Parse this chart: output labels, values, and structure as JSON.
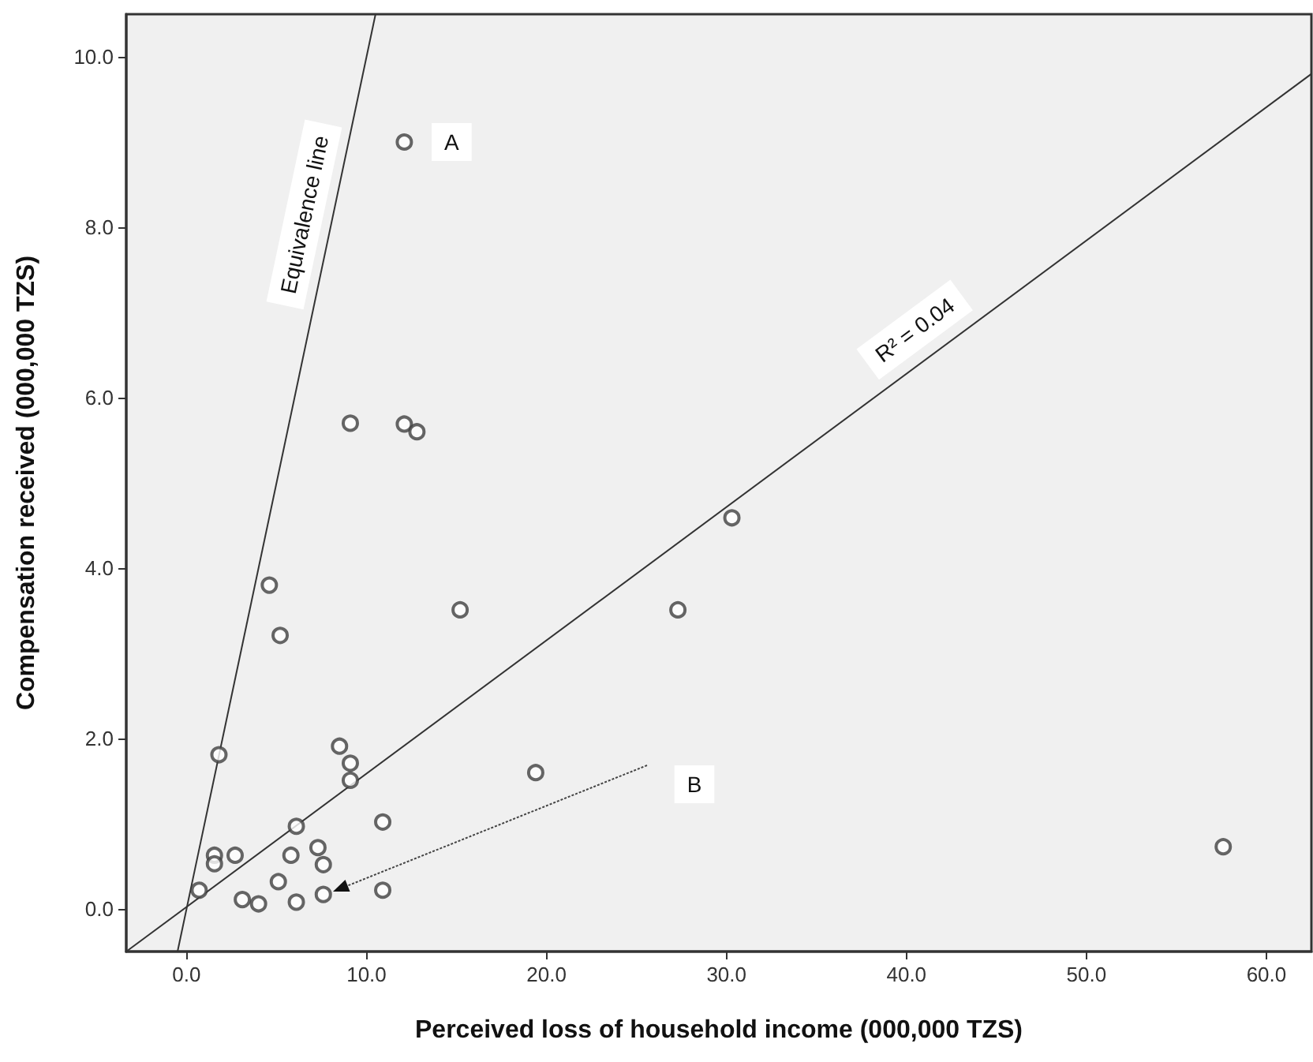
{
  "chart_data": {
    "type": "scatter",
    "xlabel": "Perceived loss of household income (000,000 TZS)",
    "ylabel": "Compensation received (000,000 TZS)",
    "x": [
      12.1,
      9.1,
      12.1,
      12.8,
      4.6,
      5.2,
      15.2,
      1.8,
      8.5,
      9.1,
      9.1,
      19.4,
      10.9,
      6.1,
      1.55,
      1.55,
      2.7,
      5.8,
      7.3,
      7.6,
      5.1,
      0.7,
      3.1,
      4.0,
      6.1,
      7.6,
      10.9,
      30.3,
      27.3,
      57.6
    ],
    "series": [
      {
        "color": "#404040",
        "values": [
          9.0,
          5.7,
          5.69,
          5.6,
          3.8,
          3.21,
          3.51,
          1.81,
          1.91,
          1.71,
          1.51,
          1.6,
          1.02,
          0.97,
          0.63,
          0.53,
          0.63,
          0.63,
          0.72,
          0.52,
          0.32,
          0.22,
          0.11,
          0.06,
          0.08,
          0.17,
          0.22,
          4.59,
          3.51,
          0.73
        ]
      },
      {
        "type": "line",
        "name": "Equivalence line",
        "marker": "none",
        "color": "#333333",
        "x": [
          -0.5,
          10.5
        ],
        "values": [
          -0.5,
          10.5
        ]
      },
      {
        "type": "line",
        "marker": "none",
        "color": "#333333",
        "x": [
          -3.35,
          62.5
        ],
        "values": [
          -0.5,
          9.8
        ]
      }
    ],
    "xlim": [
      -3.35,
      62.5
    ],
    "xticks": [
      {
        "value": 0,
        "label": "0.0"
      },
      {
        "value": 10,
        "label": "10.0"
      },
      {
        "value": 20,
        "label": "20.0"
      },
      {
        "value": 30,
        "label": "30.0"
      },
      {
        "value": 40,
        "label": "40.0"
      },
      {
        "value": 50,
        "label": "50.0"
      },
      {
        "value": 60,
        "label": "60.0"
      }
    ],
    "ylim": [
      -0.5,
      10.5
    ],
    "yticks": [
      {
        "value": 0,
        "label": "0.0"
      },
      {
        "value": 2,
        "label": "2.0"
      },
      {
        "value": 4,
        "label": "4.0"
      },
      {
        "value": 6,
        "label": "6.0"
      },
      {
        "value": 8,
        "label": "8.0"
      },
      {
        "value": 10,
        "label": "10.0"
      }
    ],
    "annotations": [
      {
        "text": "A",
        "x": 12.1,
        "y": 9.0
      },
      "B",
      {
        "text": "R² = 0.04",
        "x": 41.5,
        "y": 6.5
      }
    ],
    "grid": false,
    "legend": false,
    "marker": "circle",
    "line_style": "solid"
  }
}
